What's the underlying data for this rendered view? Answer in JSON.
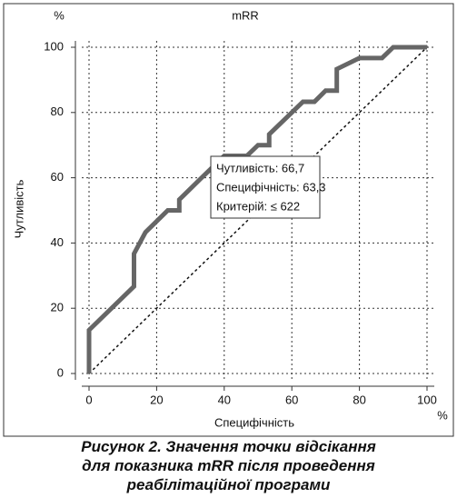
{
  "chart_data": {
    "type": "line",
    "title": "mRR",
    "x_label": "Специфічність",
    "y_label": "Чутливість",
    "x_unit": "%",
    "y_unit": "%",
    "x": [
      0,
      0,
      13.3,
      13.3,
      16.7,
      23.3,
      26.7,
      26.7,
      33.3,
      40,
      46.7,
      50,
      53.3,
      53.3,
      60,
      63.3,
      66.7,
      70,
      73.3,
      73.3,
      80,
      86.7,
      90,
      100
    ],
    "values": [
      0,
      13.3,
      26.7,
      36.7,
      43.3,
      50,
      50,
      53.3,
      60,
      66.7,
      66.7,
      70,
      70,
      73.3,
      80,
      83.3,
      83.3,
      86.7,
      86.7,
      93.3,
      96.7,
      96.7,
      100,
      100
    ],
    "color": "#666666",
    "xlim": [
      0,
      100
    ],
    "ylim": [
      0,
      100
    ],
    "xticks": [
      0,
      20,
      40,
      60,
      80,
      100
    ],
    "yticks": [
      0,
      20,
      40,
      60,
      80,
      100
    ],
    "grid": true,
    "diagonal": true,
    "annotation": [
      "Чутливість: 66,7",
      "Специфічність: 63,3",
      "Критерій: ≤ 622"
    ],
    "caption": [
      "Рисунок 2. Значення точки відсікання",
      "для показника mRR після проведення",
      "реабілітаційної програми"
    ]
  }
}
